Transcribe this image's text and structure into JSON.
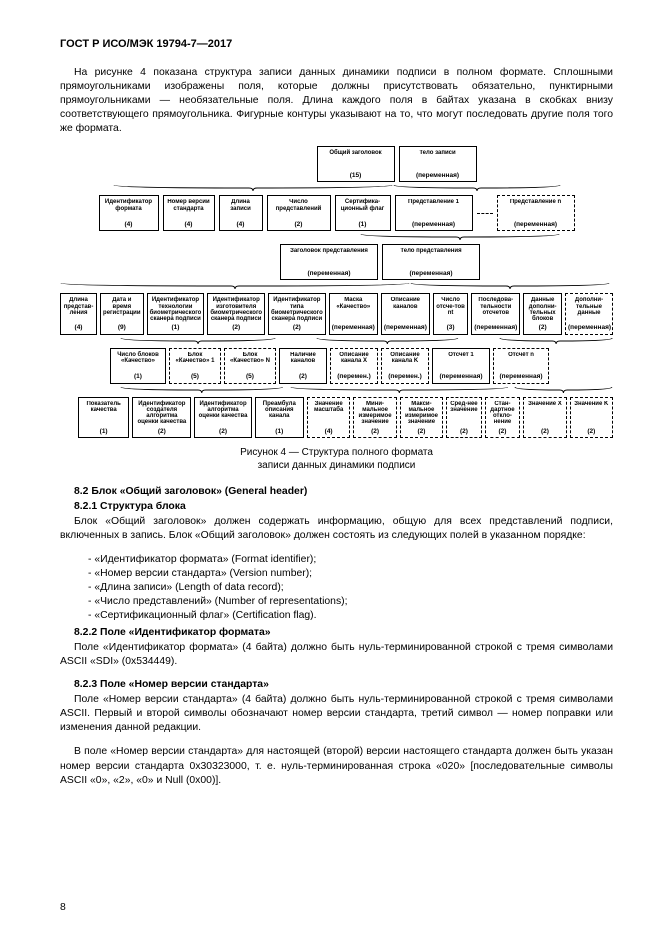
{
  "header": {
    "standard": "ГОСТ Р ИСО/МЭК 19794-7—2017"
  },
  "intro": {
    "p1": "На рисунке 4 показана структура записи данных динамики подписи в полном формате. Сплошными прямоугольниками изображены поля, которые должны присутствовать обязательно, пунктирными прямоугольниками — необязательные поля. Длина каждого поля в байтах указана в скобках внизу соответствующего прямоугольника. Фигурные контуры указывают на то, что могут последовать другие поля того же формата."
  },
  "diagram": {
    "row1": [
      {
        "label": "Общий заголовок",
        "bytes": "(15)",
        "dashed": false,
        "w": 78
      },
      {
        "label": "Тело записи",
        "bytes": "(переменная)",
        "dashed": false,
        "w": 78
      }
    ],
    "row2": [
      {
        "label": "Идентификатор формата",
        "bytes": "(4)",
        "dashed": false,
        "w": 60
      },
      {
        "label": "Номер версии стандарта",
        "bytes": "(4)",
        "dashed": false,
        "w": 52
      },
      {
        "label": "Длина записи",
        "bytes": "(4)",
        "dashed": false,
        "w": 44
      },
      {
        "label": "Число представлений",
        "bytes": "(2)",
        "dashed": false,
        "w": 64
      },
      {
        "label": "Сертифика-ционный флаг",
        "bytes": "(1)",
        "dashed": false,
        "w": 56
      },
      {
        "label": "Представление 1",
        "bytes": "(переменная)",
        "dashed": false,
        "w": 78
      },
      {
        "label": "Представление n",
        "bytes": "(переменная)",
        "dashed": true,
        "w": 78
      }
    ],
    "row2_dash_after": 5,
    "row3": [
      {
        "label": "Заголовок представления",
        "bytes": "(переменная)",
        "dashed": false,
        "w": 98
      },
      {
        "label": "Тело представления",
        "bytes": "(переменная)",
        "dashed": false,
        "w": 98
      }
    ],
    "row4": [
      {
        "label": "Длина представ-ления",
        "bytes": "(4)",
        "dashed": false,
        "w": 44
      },
      {
        "label": "Дата и время регистрации",
        "bytes": "(9)",
        "dashed": false,
        "w": 52
      },
      {
        "label": "Идентификатор технологии биометрического сканера подписи",
        "bytes": "(1)",
        "dashed": false,
        "w": 62
      },
      {
        "label": "Идентификатор изготовителя биометрического сканера подписи",
        "bytes": "(2)",
        "dashed": false,
        "w": 62
      },
      {
        "label": "Идентификатор типа биометрического сканера подписи",
        "bytes": "(2)",
        "dashed": false,
        "w": 58
      },
      {
        "label": "Маска «Качество»",
        "bytes": "(переменная)",
        "dashed": false,
        "w": 50
      },
      {
        "label": "Описание каналов",
        "bytes": "(переменная)",
        "dashed": false,
        "w": 52
      },
      {
        "label": "Число отсче-тов nt",
        "bytes": "(3)",
        "dashed": false,
        "w": 42
      },
      {
        "label": "Последова-тельности отсчетов",
        "bytes": "(переменная)",
        "dashed": false,
        "w": 52
      },
      {
        "label": "Данные дополни-тельных блоков",
        "bytes": "(2)",
        "dashed": false,
        "w": 46
      },
      {
        "label": "Дополни-тельные данные",
        "bytes": "(переменная)",
        "dashed": true,
        "w": 48
      }
    ],
    "row5": [
      {
        "label": "Число блоков «Качество»",
        "bytes": "(1)",
        "dashed": false,
        "w": 56
      },
      {
        "label": "Блок «Качество» 1",
        "bytes": "(5)",
        "dashed": true,
        "w": 52
      },
      {
        "label": "Блок «Качество» N",
        "bytes": "(5)",
        "dashed": true,
        "w": 52
      },
      {
        "label": "Наличие каналов",
        "bytes": "(2)",
        "dashed": false,
        "w": 48
      },
      {
        "label": "Описание канала X",
        "bytes": "(перемен.)",
        "dashed": true,
        "w": 48
      },
      {
        "label": "Описание канала K",
        "bytes": "(перемен.)",
        "dashed": true,
        "w": 48
      },
      {
        "label": "Отсчёт 1",
        "bytes": "(переменная)",
        "dashed": false,
        "w": 58
      },
      {
        "label": "Отсчёт n",
        "bytes": "(переменная)",
        "dashed": true,
        "w": 56
      }
    ],
    "row6": [
      {
        "label": "Показатель качества",
        "bytes": "(1)",
        "dashed": false,
        "w": 52
      },
      {
        "label": "Идентификатор создателя алгоритма оценки качества",
        "bytes": "(2)",
        "dashed": false,
        "w": 60
      },
      {
        "label": "Идентификатор алгоритма оценки качества",
        "bytes": "(2)",
        "dashed": false,
        "w": 58
      },
      {
        "label": "Преамбула описания канала",
        "bytes": "(1)",
        "dashed": false,
        "w": 50
      },
      {
        "label": "Значение масштаба",
        "bytes": "(4)",
        "dashed": true,
        "w": 44
      },
      {
        "label": "Мини-мальное измеримое значение",
        "bytes": "(2)",
        "dashed": true,
        "w": 44
      },
      {
        "label": "Макси-мальное измеримое значение",
        "bytes": "(2)",
        "dashed": true,
        "w": 44
      },
      {
        "label": "Сред-нее значение",
        "bytes": "(2)",
        "dashed": true,
        "w": 36
      },
      {
        "label": "Стан-дартное откло-нение",
        "bytes": "(2)",
        "dashed": true,
        "w": 36
      },
      {
        "label": "Значение Х",
        "bytes": "(2)",
        "dashed": true,
        "w": 44
      },
      {
        "label": "Значение K",
        "bytes": "(2)",
        "dashed": true,
        "w": 44
      }
    ],
    "caption1": "Рисунок 4 — Структура полного формата",
    "caption2": "записи данных динамики подписи"
  },
  "sec82": {
    "title": "8.2  Блок «Общий заголовок» (General header)",
    "s821_title": "8.2.1  Структура блока",
    "s821_p1": "Блок «Общий заголовок» должен содержать информацию, общую для всех представлений подписи, включенных в запись. Блок «Общий заголовок» должен состоять из следующих полей в указанном порядке:",
    "s821_items": [
      "- «Идентификатор формата» (Format identifier);",
      "- «Номер версии стандарта» (Version number);",
      "- «Длина записи» (Length of data record);",
      "- «Число представлений» (Number of representations);",
      "- «Сертификационный флаг» (Certification flag)."
    ],
    "s822_title": "8.2.2  Поле «Идентификатор формата»",
    "s822_p1": "Поле «Идентификатор формата» (4 байта) должно быть нуль-терминированной строкой с тремя символами ASCII «SDI» (0x534449).",
    "s823_title": "8.2.3  Поле «Номер версии стандарта»",
    "s823_p1": "Поле «Номер версии стандарта» (4 байта) должно быть нуль-терминированной строкой с тремя символами ASCII. Первый и второй символы обозначают номер версии стандарта, третий символ — номер поправки или изменения данной редакции.",
    "s823_p2": "В поле «Номер версии стандарта» для настоящей (второй) версии настоящего стандарта должен быть указан номер версии стандарта 0x30323000, т. е. нуль-терминированная строка «020» [последовательные символы ASCII «0», «2», «0» и Null (0x00)]."
  },
  "page_number": "8"
}
